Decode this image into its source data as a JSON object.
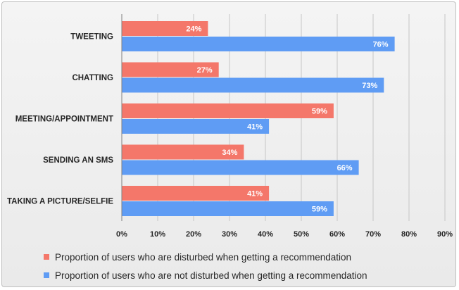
{
  "chart_data": {
    "type": "bar",
    "orientation": "horizontal",
    "categories": [
      "TWEETING",
      "CHATTING",
      "MEETING/APPOINTMENT",
      "SENDING AN SMS",
      "TAKING A PICTURE/SELFIE"
    ],
    "series": [
      {
        "name": "Proportion of users who are disturbed when getting a recommendation",
        "color": "#f4776a",
        "values": [
          24,
          27,
          59,
          34,
          41
        ],
        "labels": [
          "24%",
          "27%",
          "59%",
          "34%",
          "41%"
        ]
      },
      {
        "name": "Proportion of users who are not disturbed when getting a recommendation",
        "color": "#5f9cf4",
        "values": [
          76,
          73,
          41,
          66,
          59
        ],
        "labels": [
          "76%",
          "73%",
          "41%",
          "66%",
          "59%"
        ]
      }
    ],
    "xlim": [
      0,
      90
    ],
    "xticks": [
      "0%",
      "10%",
      "20%",
      "30%",
      "40%",
      "50%",
      "60%",
      "70%",
      "80%",
      "90%"
    ],
    "grid": true,
    "legend_position": "bottom"
  }
}
